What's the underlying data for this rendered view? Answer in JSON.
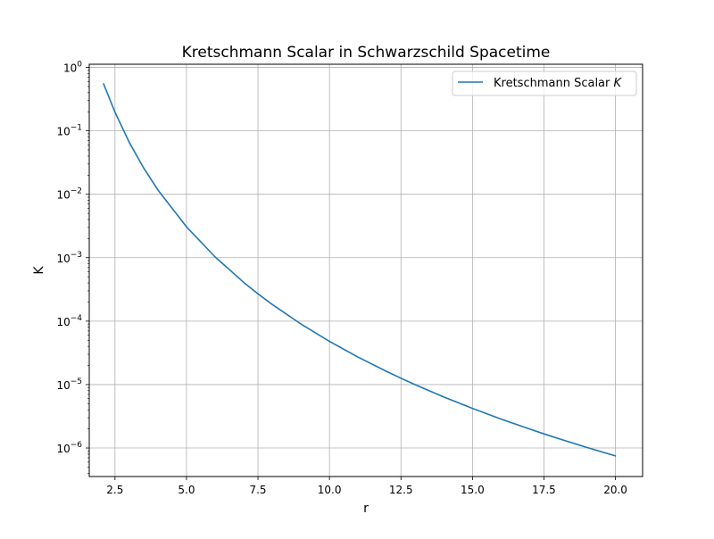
{
  "chart_data": {
    "type": "line",
    "title": "Kretschmann Scalar in Schwarzschild Spacetime",
    "xlabel": "r",
    "ylabel": "K",
    "xlim": [
      1.6,
      20.95
    ],
    "ylim_log10": [
      -6.45,
      0.05
    ],
    "yscale": "log",
    "grid": true,
    "legend_position": "top-right",
    "line_color": "#1f77b4",
    "x_ticks": [
      {
        "value": 2.5,
        "label": "2.5"
      },
      {
        "value": 5.0,
        "label": "5.0"
      },
      {
        "value": 7.5,
        "label": "7.5"
      },
      {
        "value": 10.0,
        "label": "10.0"
      },
      {
        "value": 12.5,
        "label": "12.5"
      },
      {
        "value": 15.0,
        "label": "15.0"
      },
      {
        "value": 17.5,
        "label": "17.5"
      },
      {
        "value": 20.0,
        "label": "20.0"
      }
    ],
    "y_ticks": [
      {
        "value": 1e-06,
        "base": "10",
        "exp": "−6"
      },
      {
        "value": 1e-05,
        "base": "10",
        "exp": "−5"
      },
      {
        "value": 0.0001,
        "base": "10",
        "exp": "−4"
      },
      {
        "value": 0.001,
        "base": "10",
        "exp": "−3"
      },
      {
        "value": 0.01,
        "base": "10",
        "exp": "−2"
      },
      {
        "value": 0.1,
        "base": "10",
        "exp": "−1"
      },
      {
        "value": 1,
        "base": "10",
        "exp": "0"
      }
    ],
    "series": [
      {
        "name_text": "Kretschmann Scalar ",
        "name_symbol": "K",
        "x": [
          2.1,
          2.5,
          3.0,
          3.5,
          4.0,
          5.0,
          6.0,
          7.0,
          7.5,
          8.0,
          9.0,
          10.0,
          11.0,
          12.0,
          12.5,
          13.0,
          14.0,
          15.0,
          16.0,
          17.0,
          17.5,
          18.0,
          19.0,
          20.0
        ],
        "y": [
          0.551,
          0.197,
          0.0658,
          0.0261,
          0.0117,
          0.00307,
          0.00103,
          0.000408,
          0.00027,
          0.000183,
          9.03e-05,
          4.8e-05,
          2.71e-05,
          1.61e-05,
          1.26e-05,
          9.94e-06,
          6.37e-06,
          4.21e-06,
          2.86e-06,
          1.99e-06,
          1.67e-06,
          1.41e-06,
          1.02e-06,
          7.5e-07
        ]
      }
    ]
  }
}
